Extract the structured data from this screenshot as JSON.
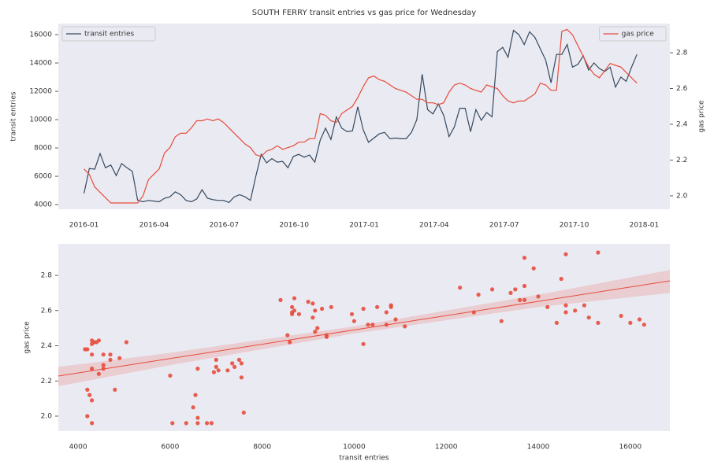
{
  "chart_data": [
    {
      "type": "line",
      "title": "SOUTH FERRY transit entries vs gas price for Wednesday",
      "y_label": "transit entries",
      "y2_label": "gas price",
      "x": [
        0,
        0.23,
        0.46,
        0.69,
        0.92,
        1.15,
        1.38,
        1.61,
        1.84,
        2.07,
        2.3,
        2.53,
        2.76,
        2.99,
        3.22,
        3.45,
        3.68,
        3.91,
        4.14,
        4.37,
        4.6,
        4.83,
        5.06,
        5.29,
        5.52,
        5.75,
        5.98,
        6.21,
        6.44,
        6.67,
        6.9,
        7.13,
        7.36,
        7.59,
        7.82,
        8.05,
        8.28,
        8.51,
        8.74,
        8.97,
        9.2,
        9.43,
        9.66,
        9.89,
        10.12,
        10.35,
        10.58,
        10.81,
        11.04,
        11.27,
        11.5,
        11.73,
        11.96,
        12.19,
        12.42,
        12.65,
        12.88,
        13.11,
        13.34,
        13.57,
        13.8,
        14.03,
        14.26,
        14.49,
        14.72,
        14.95,
        15.18,
        15.41,
        15.64,
        15.87,
        16.1,
        16.33,
        16.56,
        16.79,
        17.02,
        17.25,
        17.48,
        17.71,
        17.94,
        18.17,
        18.4,
        18.63,
        18.86,
        19.09,
        19.32,
        19.55,
        19.78,
        20.01,
        20.24,
        20.47,
        20.7,
        20.93,
        21.16,
        21.39,
        21.62,
        21.85,
        22.08,
        22.31,
        22.54,
        22.77,
        23.0,
        23.23,
        23.46,
        23.69
      ],
      "xlim": [
        -1.1,
        25.1
      ],
      "xticks": [
        {
          "value": 0,
          "label": "2016-01"
        },
        {
          "value": 3,
          "label": "2016-04"
        },
        {
          "value": 6,
          "label": "2016-07"
        },
        {
          "value": 9,
          "label": "2016-10"
        },
        {
          "value": 12,
          "label": "2017-01"
        },
        {
          "value": 15,
          "label": "2017-04"
        },
        {
          "value": 18,
          "label": "2017-07"
        },
        {
          "value": 21,
          "label": "2017-10"
        },
        {
          "value": 24,
          "label": "2018-01"
        }
      ],
      "ylim": [
        3670,
        16780
      ],
      "yticks": [
        4000,
        6000,
        8000,
        10000,
        12000,
        14000,
        16000
      ],
      "y2lim": [
        1.925,
        2.963
      ],
      "y2ticks": [
        {
          "value": 2,
          "label": "2.0"
        },
        2.2,
        2.4,
        2.6,
        2.8
      ],
      "grid": false,
      "series": [
        {
          "name": "transit entries",
          "color": "#34495e",
          "legend": "upper left",
          "values": [
            4800,
            6550,
            6500,
            7600,
            6600,
            6800,
            6050,
            6900,
            6600,
            6350,
            4300,
            4200,
            4300,
            4250,
            4200,
            4450,
            4550,
            4900,
            4700,
            4300,
            4200,
            4400,
            5050,
            4450,
            4350,
            4300,
            4300,
            4150,
            4550,
            4700,
            4550,
            4300,
            6000,
            7550,
            6950,
            7250,
            7000,
            7050,
            6600,
            7400,
            7550,
            7350,
            7500,
            7000,
            8550,
            9400,
            8600,
            10200,
            9400,
            9150,
            9200,
            10900,
            9300,
            8400,
            8700,
            9000,
            9100,
            8650,
            8700,
            8650,
            8650,
            9100,
            10000,
            13200,
            10700,
            10400,
            11100,
            10300,
            8800,
            9500,
            10800,
            10800,
            9150,
            10700,
            9950,
            10500,
            10200,
            14800,
            15100,
            14400,
            16300,
            16000,
            15300,
            16200,
            15800,
            15000,
            14200,
            12600,
            14600,
            14600,
            15300,
            13700,
            13900,
            14500,
            13500,
            14000,
            13600,
            13400,
            13700,
            12300,
            13000,
            12700,
            13700,
            14600
          ]
        },
        {
          "name": "gas price",
          "color": "#e74c3c",
          "axis": "y2",
          "legend": "upper right",
          "values": [
            2.15,
            2.12,
            2.05,
            2.02,
            1.99,
            1.96,
            1.96,
            1.96,
            1.96,
            1.96,
            1.96,
            2.0,
            2.09,
            2.12,
            2.15,
            2.24,
            2.27,
            2.33,
            2.35,
            2.35,
            2.38,
            2.42,
            2.42,
            2.43,
            2.42,
            2.43,
            2.41,
            2.38,
            2.35,
            2.32,
            2.29,
            2.27,
            2.23,
            2.22,
            2.25,
            2.26,
            2.28,
            2.26,
            2.27,
            2.28,
            2.3,
            2.3,
            2.32,
            2.32,
            2.46,
            2.45,
            2.42,
            2.41,
            2.46,
            2.48,
            2.5,
            2.55,
            2.61,
            2.66,
            2.67,
            2.65,
            2.64,
            2.62,
            2.6,
            2.59,
            2.58,
            2.56,
            2.54,
            2.54,
            2.52,
            2.52,
            2.51,
            2.52,
            2.58,
            2.62,
            2.63,
            2.62,
            2.6,
            2.59,
            2.58,
            2.62,
            2.61,
            2.6,
            2.56,
            2.53,
            2.52,
            2.53,
            2.53,
            2.55,
            2.57,
            2.63,
            2.62,
            2.59,
            2.59,
            2.92,
            2.93,
            2.9,
            2.84,
            2.78,
            2.72,
            2.68,
            2.66,
            2.7,
            2.74,
            2.73,
            2.72,
            2.69,
            2.66,
            2.63
          ]
        }
      ]
    },
    {
      "type": "scatter",
      "x_label": "transit entries",
      "y_label": "gas price",
      "color": "#e74c3c",
      "xlim": [
        3570,
        16860
      ],
      "xticks": [
        4000,
        6000,
        8000,
        10000,
        12000,
        14000,
        16000
      ],
      "ylim": [
        1.915,
        2.979
      ],
      "yticks": [
        {
          "value": 2,
          "label": "2.0"
        },
        2.2,
        2.4,
        2.6,
        2.8
      ],
      "fit": {
        "x": [
          3570,
          6000,
          10000,
          14000,
          16860
        ],
        "y": [
          2.228,
          2.327,
          2.49,
          2.652,
          2.769
        ],
        "lower": [
          2.17,
          2.29,
          2.47,
          2.62,
          2.7
        ],
        "upper": [
          2.28,
          2.36,
          2.51,
          2.69,
          2.83
        ]
      }
    }
  ]
}
